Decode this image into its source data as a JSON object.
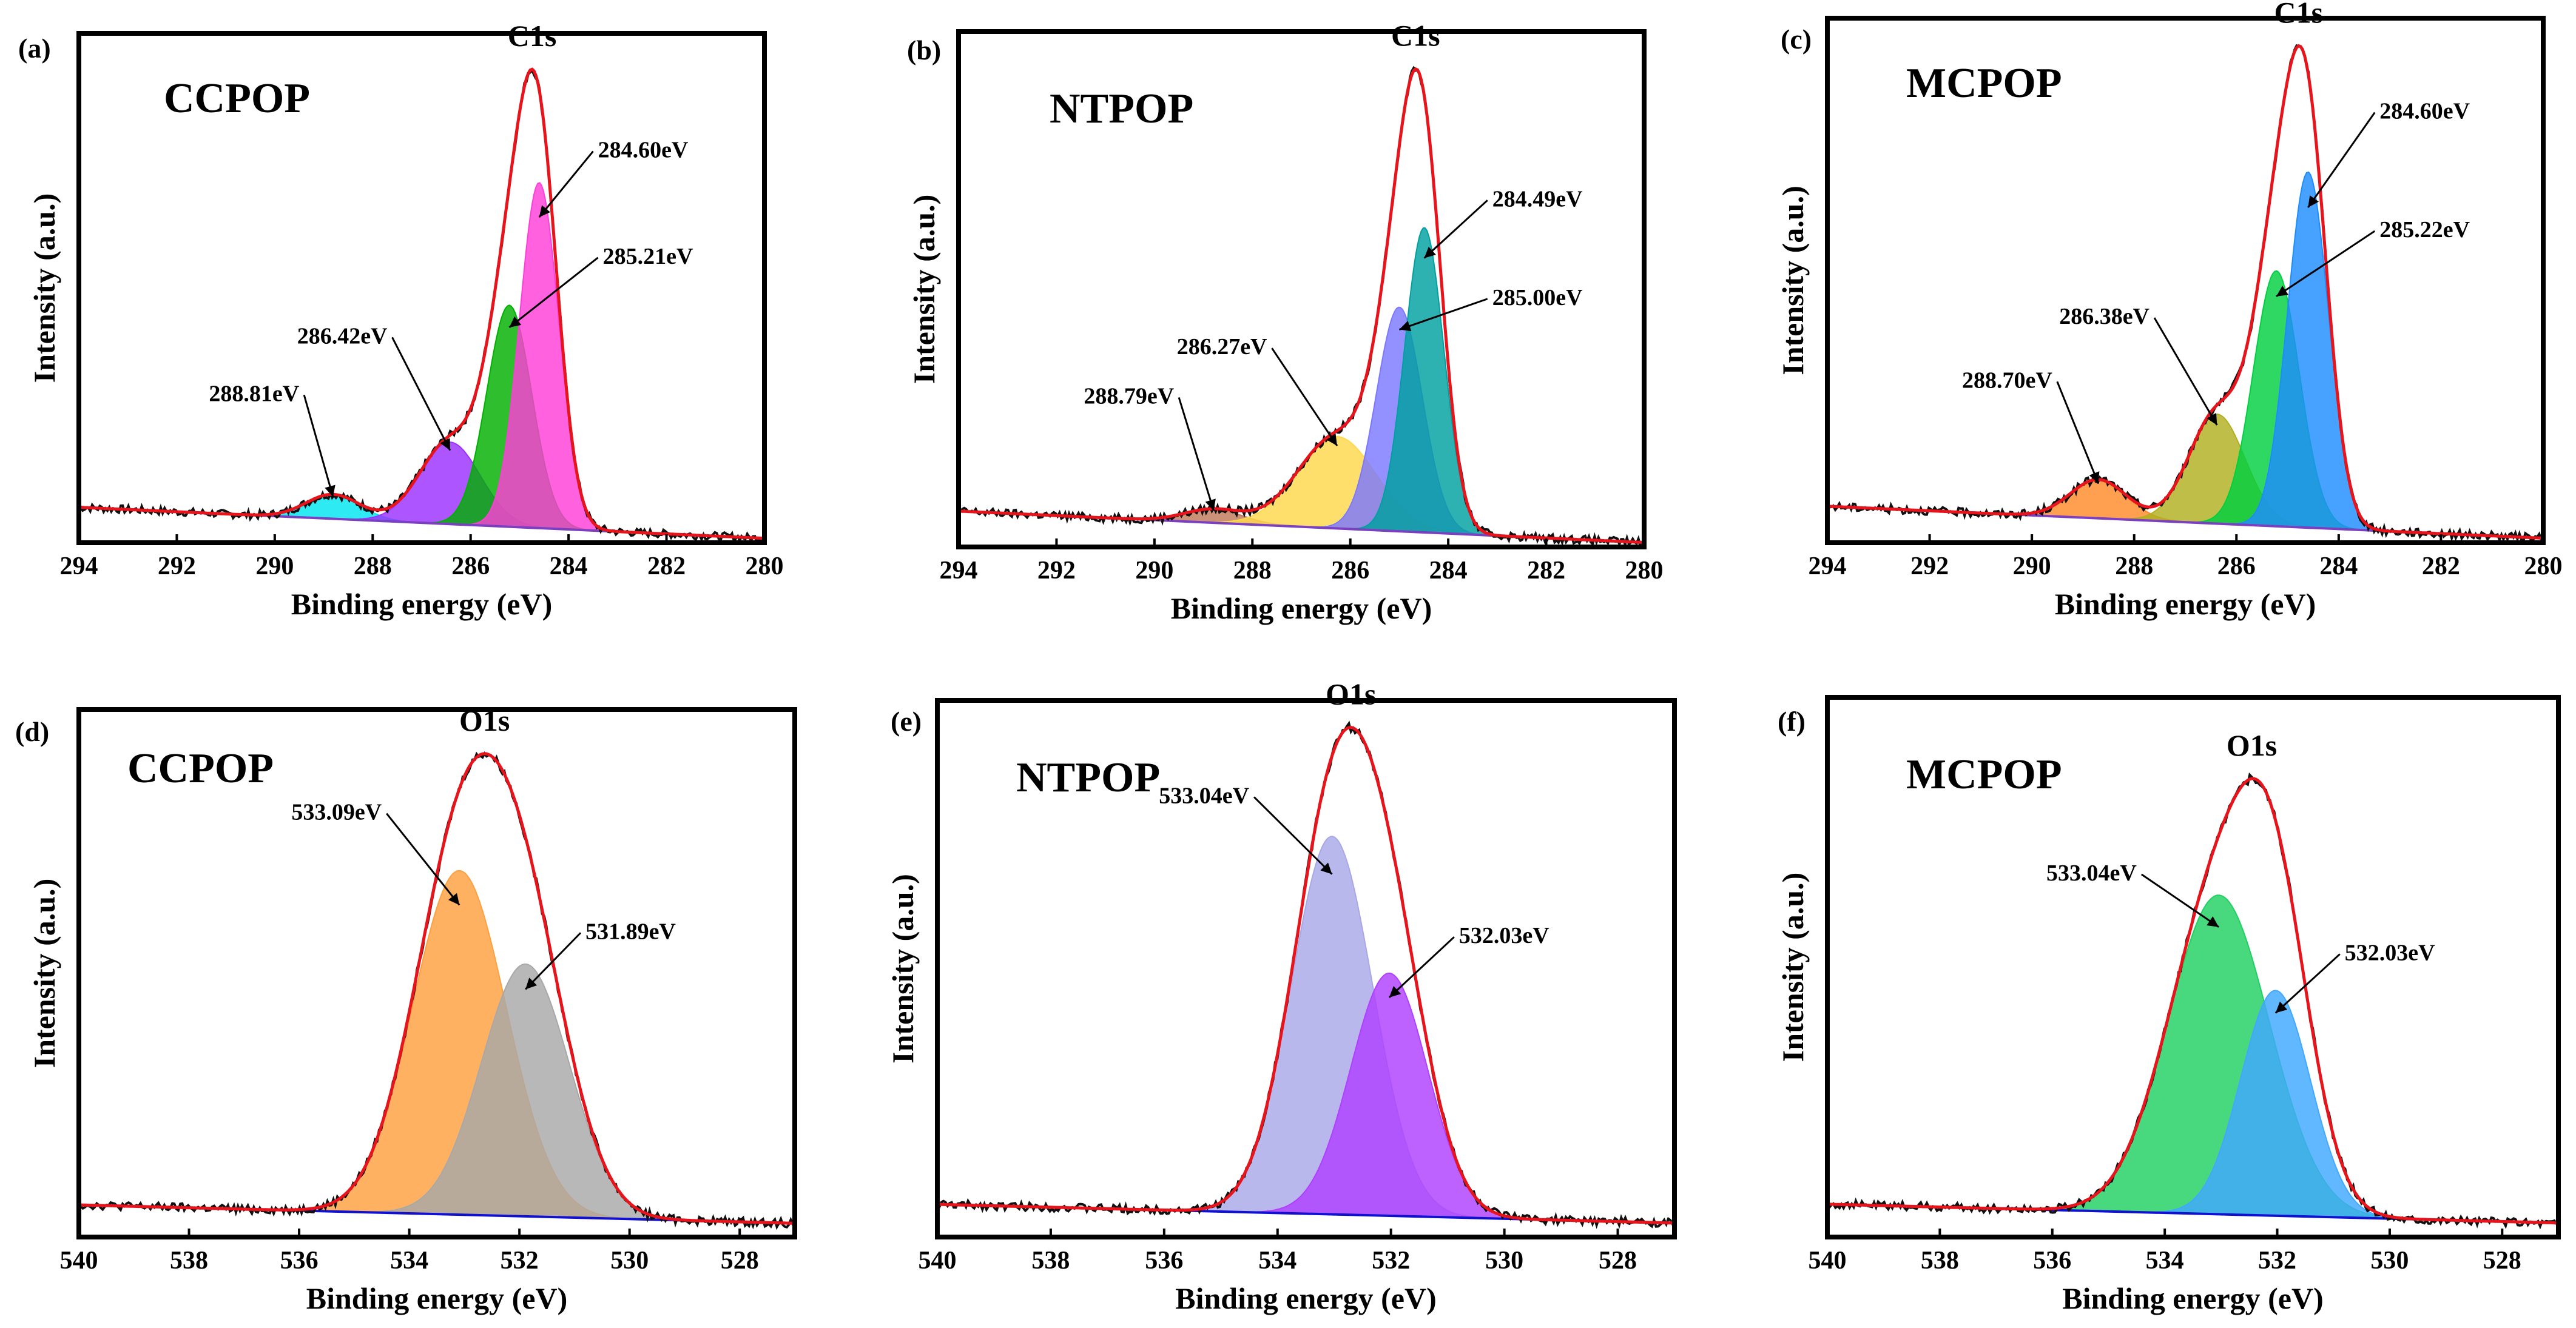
{
  "chart_data": [
    {
      "type": "line",
      "panel": "(a)",
      "sample": "CCPOP",
      "peak": "C1s",
      "xlabel": "Binding energy (eV)",
      "ylabel": "Intensity (a.u.)",
      "xlim": [
        294,
        280
      ],
      "ylim": [
        -0.05,
        1.1
      ],
      "xticks": [
        294,
        292,
        290,
        288,
        286,
        284,
        282,
        280
      ],
      "baseline": {
        "y0": 0.03,
        "y1": -0.04
      },
      "components": [
        {
          "center": 288.81,
          "sigma": 0.55,
          "amp": 0.055,
          "color": "#00e5f0",
          "label": "288.81eV",
          "text_at": [
            289.5,
            0.27
          ]
        },
        {
          "center": 286.42,
          "sigma": 0.62,
          "amp": 0.185,
          "color": "#9b30ff",
          "label": "286.42eV",
          "text_at": [
            287.7,
            0.4
          ]
        },
        {
          "center": 285.21,
          "sigma": 0.46,
          "amp": 0.5,
          "color": "#00b000",
          "label": "285.21eV",
          "text_at": [
            283.3,
            0.58
          ]
        },
        {
          "center": 284.6,
          "sigma": 0.4,
          "amp": 0.78,
          "color": "#ff3ed8",
          "label": "284.60eV",
          "text_at": [
            283.4,
            0.82
          ]
        }
      ]
    },
    {
      "type": "line",
      "panel": "(b)",
      "sample": "NTPOP",
      "peak": "C1s",
      "xlabel": "Binding energy (eV)",
      "ylabel": "Intensity (a.u.)",
      "xlim": [
        294,
        280
      ],
      "ylim": [
        -0.05,
        1.1
      ],
      "xticks": [
        294,
        292,
        290,
        288,
        286,
        284,
        282,
        280
      ],
      "baseline": {
        "y0": 0.03,
        "y1": -0.04
      },
      "components": [
        {
          "center": 288.79,
          "sigma": 0.6,
          "amp": 0.03,
          "color": "#c07a5a",
          "label": "288.79eV",
          "text_at": [
            289.6,
            0.27
          ]
        },
        {
          "center": 286.27,
          "sigma": 0.8,
          "amp": 0.205,
          "color": "#ffd84a",
          "label": "286.27eV",
          "text_at": [
            287.7,
            0.38
          ]
        },
        {
          "center": 285.0,
          "sigma": 0.47,
          "amp": 0.5,
          "color": "#7b78ff",
          "label": "285.00eV",
          "text_at": [
            283.1,
            0.49
          ]
        },
        {
          "center": 284.49,
          "sigma": 0.4,
          "amp": 0.68,
          "color": "#00a0a0",
          "label": "284.49eV",
          "text_at": [
            283.1,
            0.71
          ]
        }
      ]
    },
    {
      "type": "line",
      "panel": "(c)",
      "sample": "MCPOP",
      "peak": "C1s",
      "xlabel": "Binding energy (eV)",
      "ylabel": "Intensity (a.u.)",
      "xlim": [
        294,
        280
      ],
      "ylim": [
        -0.05,
        1.1
      ],
      "xticks": [
        294,
        292,
        290,
        288,
        286,
        284,
        282,
        280
      ],
      "baseline": {
        "y0": 0.03,
        "y1": -0.04
      },
      "components": [
        {
          "center": 288.7,
          "sigma": 0.55,
          "amp": 0.085,
          "color": "#ff8a2a",
          "label": "288.70eV",
          "text_at": [
            289.6,
            0.29
          ]
        },
        {
          "center": 286.38,
          "sigma": 0.55,
          "amp": 0.24,
          "color": "#b0b020",
          "label": "286.38eV",
          "text_at": [
            287.7,
            0.43
          ]
        },
        {
          "center": 285.22,
          "sigma": 0.45,
          "amp": 0.56,
          "color": "#00d040",
          "label": "285.22eV",
          "text_at": [
            283.2,
            0.62
          ]
        },
        {
          "center": 284.6,
          "sigma": 0.4,
          "amp": 0.78,
          "color": "#1e8cff",
          "label": "284.60eV",
          "text_at": [
            283.2,
            0.88
          ]
        }
      ]
    },
    {
      "type": "line",
      "panel": "(d)",
      "sample": "CCPOP",
      "peak": "O1s",
      "xlabel": "Binding energy (eV)",
      "ylabel": "Intensity (a.u.)",
      "xlim": [
        540,
        527
      ],
      "ylim": [
        -0.05,
        1.1
      ],
      "xticks": [
        540,
        538,
        536,
        534,
        532,
        530,
        528
      ],
      "baseline": {
        "y0": 0.02,
        "y1": -0.02
      },
      "components": [
        {
          "center": 533.09,
          "sigma": 0.85,
          "amp": 0.75,
          "color": "#ffa040",
          "label": "533.09eV",
          "text_at": [
            534.5,
            0.86
          ]
        },
        {
          "center": 531.89,
          "sigma": 0.8,
          "amp": 0.55,
          "color": "#a8a8a8",
          "label": "531.89eV",
          "text_at": [
            530.8,
            0.6
          ]
        }
      ]
    },
    {
      "type": "line",
      "panel": "(e)",
      "sample": "NTPOP",
      "peak": "O1s",
      "xlabel": "Binding energy (eV)",
      "ylabel": "Intensity (a.u.)",
      "xlim": [
        540,
        527
      ],
      "ylim": [
        -0.05,
        1.1
      ],
      "xticks": [
        540,
        538,
        536,
        534,
        532,
        530,
        528
      ],
      "baseline": {
        "y0": 0.02,
        "y1": -0.02
      },
      "components": [
        {
          "center": 533.04,
          "sigma": 0.72,
          "amp": 0.81,
          "color": "#a8a8e8",
          "label": "533.04eV",
          "text_at": [
            534.5,
            0.88
          ]
        },
        {
          "center": 532.03,
          "sigma": 0.68,
          "amp": 0.52,
          "color": "#b040ff",
          "label": "532.03eV",
          "text_at": [
            530.8,
            0.58
          ]
        }
      ]
    },
    {
      "type": "line",
      "panel": "(f)",
      "sample": "MCPOP",
      "peak": "O1s",
      "xlabel": "Binding energy (eV)",
      "ylabel": "Intensity (a.u.)",
      "xlim": [
        540,
        527
      ],
      "ylim": [
        -0.05,
        1.1
      ],
      "xticks": [
        540,
        538,
        536,
        534,
        532,
        530,
        528
      ],
      "baseline": {
        "y0": 0.02,
        "y1": -0.02
      },
      "components": [
        {
          "center": 533.04,
          "sigma": 0.9,
          "amp": 0.68,
          "color": "#20d060",
          "label": "533.04eV",
          "text_at": [
            534.5,
            0.71
          ]
        },
        {
          "center": 532.03,
          "sigma": 0.62,
          "amp": 0.48,
          "color": "#40a8ff",
          "label": "532.03eV",
          "text_at": [
            530.8,
            0.54
          ]
        }
      ]
    }
  ]
}
